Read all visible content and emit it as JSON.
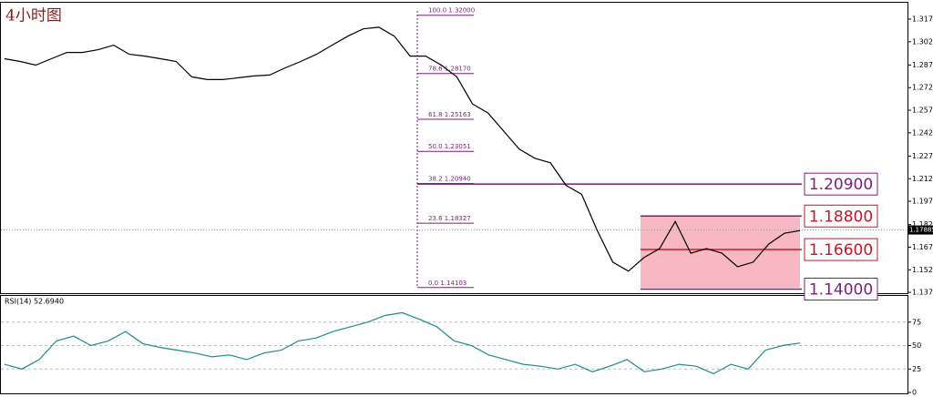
{
  "chart_data": [
    {
      "type": "line",
      "title": "4小时图",
      "color": "#000000",
      "values": [
        1.2914,
        1.2896,
        1.2872,
        1.2914,
        1.2955,
        1.2955,
        1.2973,
        1.3003,
        1.2943,
        1.2931,
        1.2914,
        1.2896,
        1.2795,
        1.2777,
        1.2777,
        1.2789,
        1.2801,
        1.2807,
        1.2854,
        1.2896,
        1.2943,
        1.3003,
        1.3062,
        1.311,
        1.3121,
        1.3062,
        1.2931,
        1.2931,
        1.2872,
        1.2795,
        1.2617,
        1.2557,
        1.2438,
        1.232,
        1.226,
        1.223,
        1.2082,
        1.2023,
        1.1785,
        1.1577,
        1.1518,
        1.1607,
        1.1666,
        1.1844,
        1.1636,
        1.1666,
        1.1636,
        1.1547,
        1.1577,
        1.1696,
        1.1767,
        1.1785
      ],
      "ylim": [
        1.1373,
        1.327
      ],
      "yticks": [
        1.31745,
        1.30255,
        1.28725,
        {
          "value": 1.2724,
          "label": "1.27240"
        },
        1.25755,
        {
          "value": 1.2427,
          "label": "1.24270"
        },
        {
          "value": 1.2274,
          "label": "1.22740"
        },
        1.21255,
        {
          "value": 1.1977,
          "label": "1.19770"
        },
        {
          "value": 1.1824,
          "label": "1.18240"
        },
        1.16755,
        {
          "value": 1.1527,
          "label": "1.15270"
        },
        1.13785
      ],
      "current_price": 1.17885,
      "fib_levels": [
        {
          "value": 1.32,
          "label": "100.0  1.32000"
        },
        {
          "value": 1.2817,
          "label": "78.6  1.28170"
        },
        {
          "value": 1.25163,
          "label": "61.8  1.25163"
        },
        {
          "value": 1.23051,
          "label": "50.0  1.23051"
        },
        {
          "value": 1.2094,
          "label": "38.2  1.20940"
        },
        {
          "value": 1.18327,
          "label": "23.6  1.18327"
        },
        {
          "value": 1.14103,
          "label": "0.0  1.14103"
        }
      ],
      "levels": [
        {
          "value": 1.209,
          "label": "1.20900"
        },
        {
          "value": 1.188,
          "label": "1.18800"
        },
        {
          "value": 1.166,
          "label": "1.16600"
        },
        {
          "value": 1.14,
          "label": "1.14000"
        }
      ]
    },
    {
      "type": "line",
      "title": "RSI(14) 52.6940",
      "color": "#1f8a8a",
      "values": [
        30,
        25,
        35,
        55,
        60,
        50,
        55,
        65,
        52,
        48,
        45,
        42,
        38,
        40,
        35,
        42,
        45,
        55,
        58,
        65,
        70,
        75,
        82,
        85,
        78,
        70,
        55,
        50,
        40,
        35,
        30,
        28,
        25,
        30,
        22,
        28,
        35,
        22,
        25,
        30,
        28,
        20,
        30,
        25,
        45,
        50,
        52.694
      ],
      "ylim": [
        0,
        100
      ],
      "yticks": [
        0,
        25,
        50,
        75
      ]
    }
  ]
}
